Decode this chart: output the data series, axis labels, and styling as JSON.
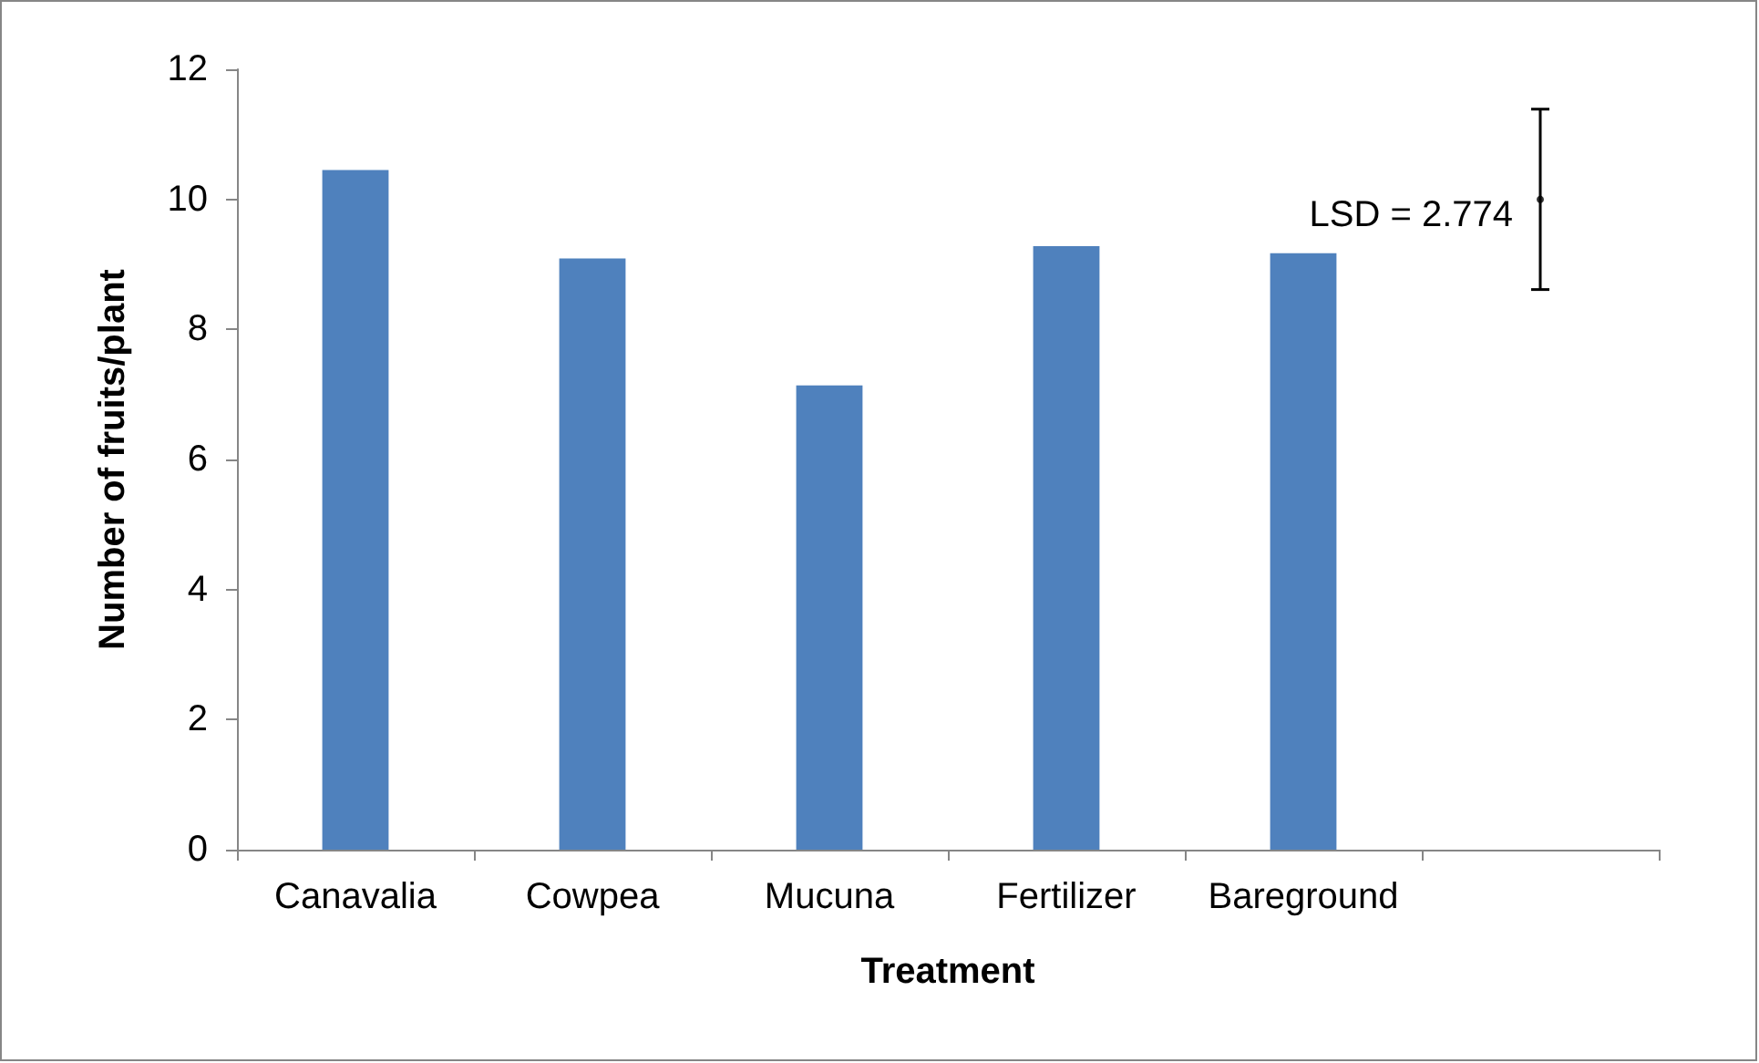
{
  "chart_data": {
    "type": "bar",
    "xlabel": "Treatment",
    "ylabel": "Number of fruits/plant",
    "categories": [
      "Canavalia",
      "Cowpea",
      "Mucuna",
      "Fertilizer",
      "Bareground",
      null
    ],
    "series": [
      {
        "type": "bar",
        "color": "#4f81bd",
        "values": [
          10.45,
          9.09,
          7.14,
          9.28,
          9.17,
          null
        ]
      },
      {
        "type": "scatter",
        "color": "#000000",
        "values": [
          null,
          null,
          null,
          null,
          null,
          10
        ],
        "errors": [
          null,
          null,
          null,
          null,
          null,
          1.387
        ]
      }
    ],
    "annotations": [
      "LSD = 2.774"
    ],
    "ylim": [
      0,
      12
    ],
    "yticks": [
      0,
      2,
      4,
      6,
      8,
      10,
      12
    ],
    "grid": false
  }
}
